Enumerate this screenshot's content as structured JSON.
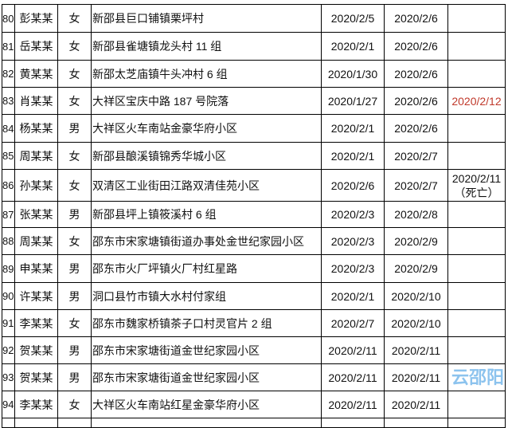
{
  "rows": [
    {
      "no": "80",
      "name": "彭某某",
      "sex": "女",
      "address": "新邵县巨口铺镇栗坪村",
      "onset": "2020/2/5",
      "confirmed": "2020/2/6",
      "note": ""
    },
    {
      "no": "81",
      "name": "岳某某",
      "sex": "女",
      "address": "新邵县雀塘镇龙头村 11 组",
      "onset": "2020/2/1",
      "confirmed": "2020/2/6",
      "note": ""
    },
    {
      "no": "82",
      "name": "黄某某",
      "sex": "女",
      "address": "新邵太芝庙镇牛头冲村 6 组",
      "onset": "2020/1/30",
      "confirmed": "2020/2/6",
      "note": ""
    },
    {
      "no": "83",
      "name": "肖某某",
      "sex": "女",
      "address": "大祥区宝庆中路 187 号院落",
      "onset": "2020/1/27",
      "confirmed": "2020/2/6",
      "note": "2020/2/12",
      "note_color": "#c0392b"
    },
    {
      "no": "84",
      "name": "杨某某",
      "sex": "男",
      "address": "大祥区火车南站金豪华府小区",
      "onset": "2020/2/1",
      "confirmed": "2020/2/6",
      "note": ""
    },
    {
      "no": "85",
      "name": "周某某",
      "sex": "女",
      "address": "新邵县酿溪镇锦秀华城小区",
      "onset": "2020/2/1",
      "confirmed": "2020/2/7",
      "note": ""
    },
    {
      "no": "86",
      "name": "孙某某",
      "sex": "女",
      "address": "双清区工业街田江路双清佳苑小区",
      "onset": "2020/2/6",
      "confirmed": "2020/2/7",
      "note": "2020/2/11",
      "note2": "（死亡）"
    },
    {
      "no": "87",
      "name": "张某某",
      "sex": "男",
      "address": "新邵县坪上镇筱溪村 6 组",
      "onset": "2020/2/3",
      "confirmed": "2020/2/8",
      "note": ""
    },
    {
      "no": "88",
      "name": "周某某",
      "sex": "女",
      "address": "邵东市宋家塘镇街道办事处金世纪家园小区",
      "onset": "2020/2/3",
      "confirmed": "2020/2/9",
      "note": ""
    },
    {
      "no": "89",
      "name": "申某某",
      "sex": "男",
      "address": "邵东市火厂坪镇火厂村红星路",
      "onset": "2020/2/3",
      "confirmed": "2020/2/9",
      "note": ""
    },
    {
      "no": "90",
      "name": "许某某",
      "sex": "男",
      "address": "洞口县竹市镇大水村付家组",
      "onset": "2020/2/1",
      "confirmed": "2020/2/10",
      "note": ""
    },
    {
      "no": "91",
      "name": "李某某",
      "sex": "女",
      "address": "邵东市魏家桥镇茶子口村灵官片 2 组",
      "onset": "2020/2/7",
      "confirmed": "2020/2/10",
      "note": ""
    },
    {
      "no": "92",
      "name": "贺某某",
      "sex": "男",
      "address": "邵东市宋家塘街道金世纪家园小区",
      "onset": "2020/2/11",
      "confirmed": "2020/2/11",
      "note": ""
    },
    {
      "no": "93",
      "name": "贺某某",
      "sex": "男",
      "address": "邵东市宋家塘街道金世纪家园小区",
      "onset": "2020/2/11",
      "confirmed": "2020/2/11",
      "note": ""
    },
    {
      "no": "94",
      "name": "李某某",
      "sex": "女",
      "address": "大祥区火车南站红星金豪华府小区",
      "onset": "2020/2/11",
      "confirmed": "2020/2/11",
      "note": ""
    }
  ],
  "watermark": "云邵阳"
}
